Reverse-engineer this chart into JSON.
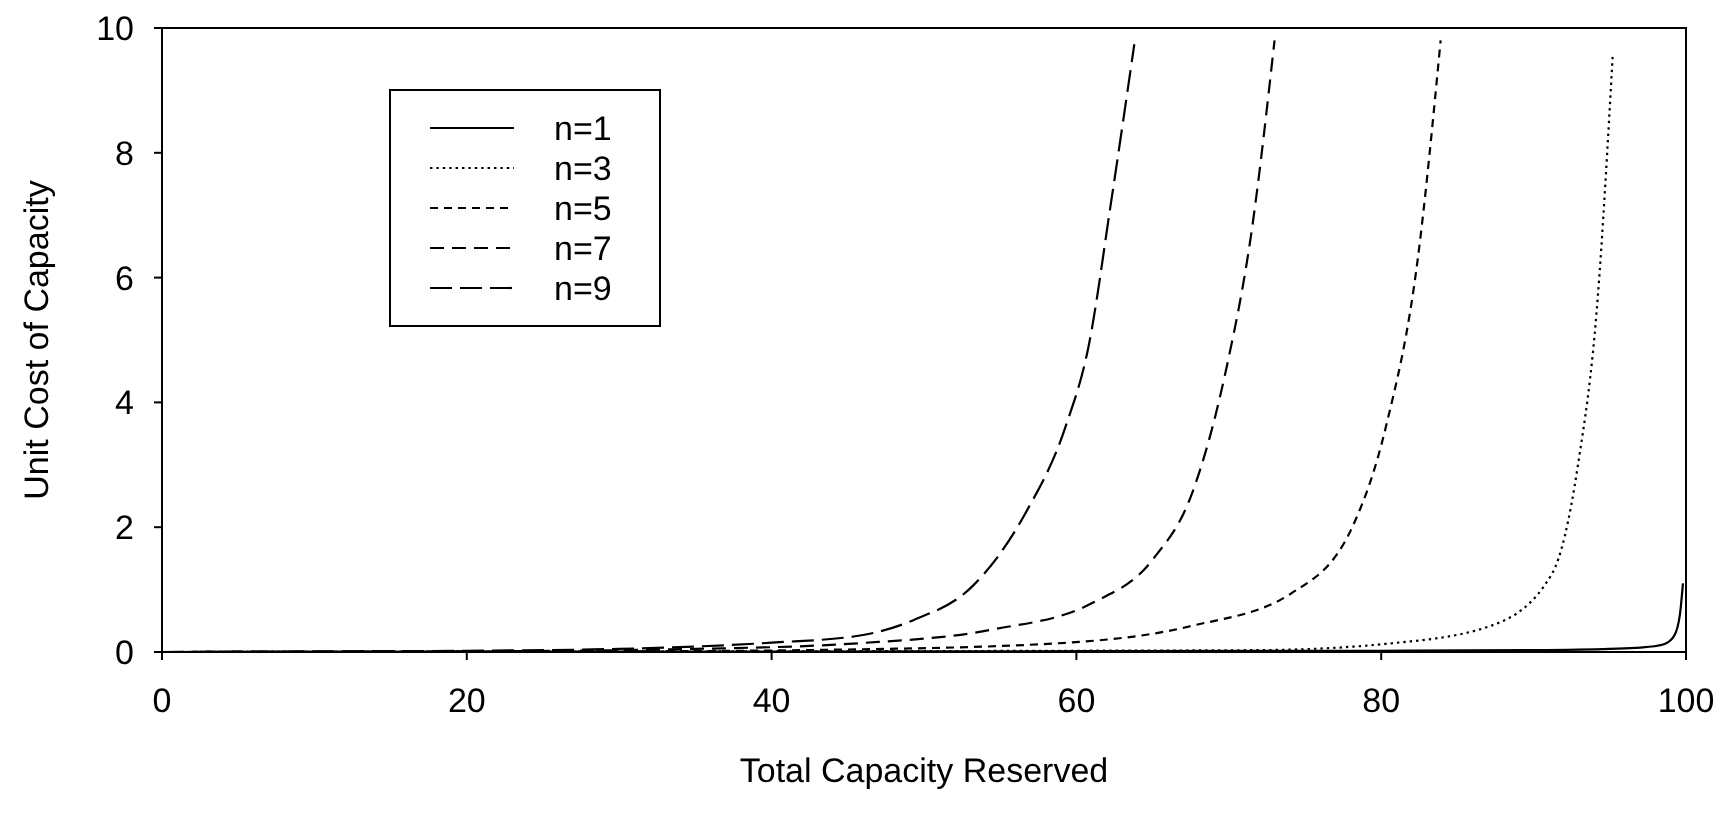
{
  "chart_data": {
    "type": "line",
    "xlabel": "Total Capacity Reserved",
    "ylabel": "Unit Cost of Capacity",
    "xlim": [
      0,
      100
    ],
    "ylim": [
      0,
      10
    ],
    "xticks": [
      0,
      20,
      40,
      60,
      80,
      100
    ],
    "yticks": [
      0,
      2,
      4,
      6,
      8,
      10
    ],
    "grid": false,
    "legend": "top left",
    "marker": "none",
    "series": [
      {
        "name": "n=1",
        "color": "#000000",
        "line_style": "solid",
        "x": [
          0,
          50,
          80,
          90,
          95,
          97,
          98.5,
          99.2,
          99.6,
          99.8
        ],
        "values": [
          0,
          0.01,
          0.02,
          0.03,
          0.05,
          0.07,
          0.12,
          0.25,
          0.6,
          1.1
        ]
      },
      {
        "name": "n=3",
        "color": "#000000",
        "line_style": "dotted",
        "x": [
          0,
          40,
          60,
          72,
          80.7,
          87.2,
          91.2,
          92.9,
          94.2,
          95.2
        ],
        "values": [
          0,
          0.01,
          0.02,
          0.03,
          0.14,
          0.42,
          1.25,
          2.98,
          5.65,
          9.6
        ]
      },
      {
        "name": "n=5",
        "color": "#000000",
        "line_style": "dashed",
        "x": [
          0,
          30,
          45,
          58.8,
          67.6,
          74.1,
          78.1,
          80.3,
          82.4,
          83.9
        ],
        "values": [
          0,
          0.01,
          0.04,
          0.14,
          0.42,
          0.94,
          2.0,
          3.6,
          6.3,
          9.8
        ]
      },
      {
        "name": "n=7",
        "color": "#000000",
        "line_style": "dashed",
        "x": [
          0,
          20,
          35,
          45.7,
          54.5,
          61,
          65,
          67.6,
          69.8,
          71.5,
          73
        ],
        "values": [
          0,
          0.01,
          0.05,
          0.14,
          0.36,
          0.78,
          1.48,
          2.55,
          4.5,
          6.75,
          9.8
        ]
      },
      {
        "name": "n=9",
        "color": "#000000",
        "line_style": "dashed",
        "x": [
          0,
          10,
          20,
          30,
          40,
          45.7,
          49.3,
          53.2,
          56.6,
          59.3,
          60.8,
          62.3,
          63.8
        ],
        "values": [
          0,
          0.01,
          0.02,
          0.05,
          0.15,
          0.26,
          0.51,
          1.06,
          2.2,
          3.62,
          4.9,
          7.25,
          9.74
        ]
      }
    ]
  }
}
